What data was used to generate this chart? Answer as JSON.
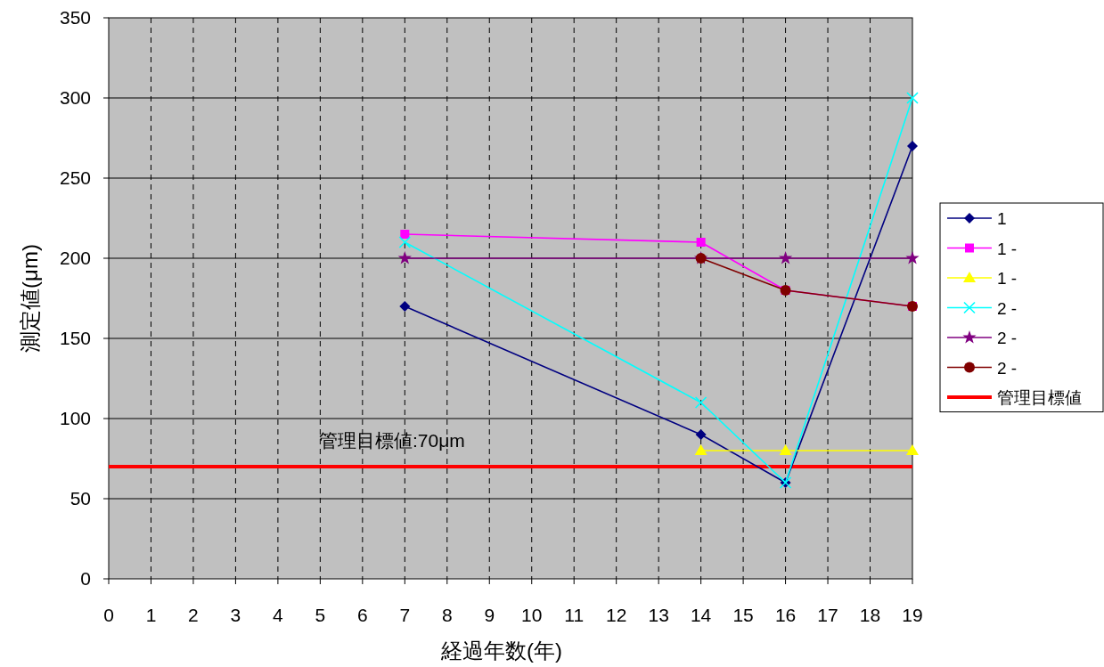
{
  "chart_data": {
    "type": "line",
    "xlabel": "経過年数(年)",
    "ylabel": "測定値(μm)",
    "xlim": [
      0,
      19
    ],
    "xticks": [
      0,
      1,
      2,
      3,
      4,
      5,
      6,
      7,
      8,
      9,
      10,
      11,
      12,
      13,
      14,
      15,
      16,
      17,
      18,
      19
    ],
    "ylim": [
      0,
      350
    ],
    "yticks": [
      0,
      50,
      100,
      150,
      200,
      250,
      300,
      350
    ],
    "grid": true,
    "legend": "right",
    "line_style": "solid",
    "series": [
      {
        "name": "1",
        "color": "#000080",
        "marker": "diamond",
        "x": [
          7,
          14,
          16,
          19
        ],
        "values": [
          170,
          90,
          60,
          270
        ]
      },
      {
        "name": "1 -",
        "color": "#ff00ff",
        "marker": "square",
        "x": [
          7,
          14,
          16,
          19
        ],
        "values": [
          215,
          210,
          180,
          170
        ]
      },
      {
        "name": "1 -",
        "color": "#ffff00",
        "marker": "triangle",
        "x": [
          14,
          16,
          19
        ],
        "values": [
          80,
          80,
          80
        ]
      },
      {
        "name": "2 -",
        "color": "#00ffff",
        "marker": "cross",
        "x": [
          7,
          14,
          16,
          19
        ],
        "values": [
          210,
          110,
          60,
          300
        ]
      },
      {
        "name": "2 -",
        "color": "#800080",
        "marker": "star",
        "x": [
          7,
          14,
          16,
          19
        ],
        "values": [
          200,
          200,
          200,
          200
        ]
      },
      {
        "name": "2 -",
        "color": "#800000",
        "marker": "circle",
        "x": [
          14,
          16,
          19
        ],
        "values": [
          200,
          180,
          170
        ]
      }
    ],
    "ref_lines": [
      {
        "axis": "y",
        "value": 70,
        "label": "管理目標値",
        "color": "#ff0000"
      }
    ],
    "annotations": [
      "管理目標値:70μm"
    ]
  }
}
